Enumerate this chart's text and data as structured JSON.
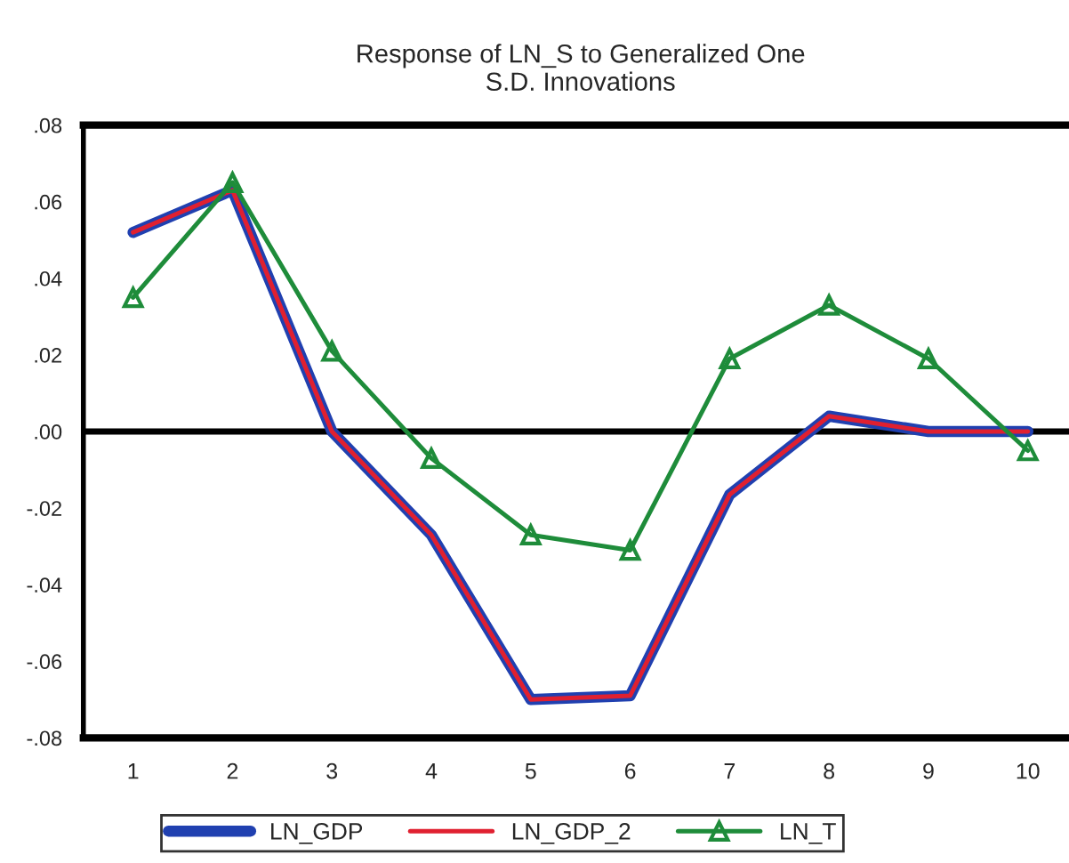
{
  "chart_data": {
    "type": "line",
    "title": "Response of LN_S to Generalized One\nS.D. Innovations",
    "categories": [
      "1",
      "2",
      "3",
      "4",
      "5",
      "6",
      "7",
      "8",
      "9",
      "10"
    ],
    "series": [
      {
        "name": "LN_GDP",
        "color": "#2040b0",
        "values": [
          0.052,
          0.063,
          0.0,
          -0.027,
          -0.07,
          -0.069,
          -0.0165,
          0.004,
          0.0,
          0.0
        ]
      },
      {
        "name": "LN_GDP_2",
        "color": "#e02030",
        "values": [
          0.052,
          0.063,
          0.0,
          -0.027,
          -0.07,
          -0.069,
          -0.0165,
          0.004,
          0.0,
          0.0
        ]
      },
      {
        "name": "LN_T",
        "color": "#1e8c3a",
        "marker": "triangle",
        "values": [
          0.035,
          0.065,
          0.021,
          -0.007,
          -0.027,
          -0.031,
          0.019,
          0.033,
          0.019,
          -0.005
        ]
      }
    ],
    "ylim": [
      -0.08,
      0.08
    ],
    "yticks": [
      {
        "value": -0.08,
        "label": "-.08"
      },
      {
        "value": -0.06,
        "label": "-.06"
      },
      {
        "value": -0.04,
        "label": "-.04"
      },
      {
        "value": -0.02,
        "label": "-.02"
      },
      {
        "value": 0.0,
        "label": ".00"
      },
      {
        "value": 0.02,
        "label": ".02"
      },
      {
        "value": 0.04,
        "label": ".04"
      },
      {
        "value": 0.06,
        "label": ".06"
      },
      {
        "value": 0.08,
        "label": ".08"
      }
    ],
    "ref_lines": [
      {
        "axis": "y",
        "value": 0.0,
        "color": "#000000"
      }
    ],
    "grid": false,
    "legend": "bottom",
    "line_style": "solid"
  }
}
